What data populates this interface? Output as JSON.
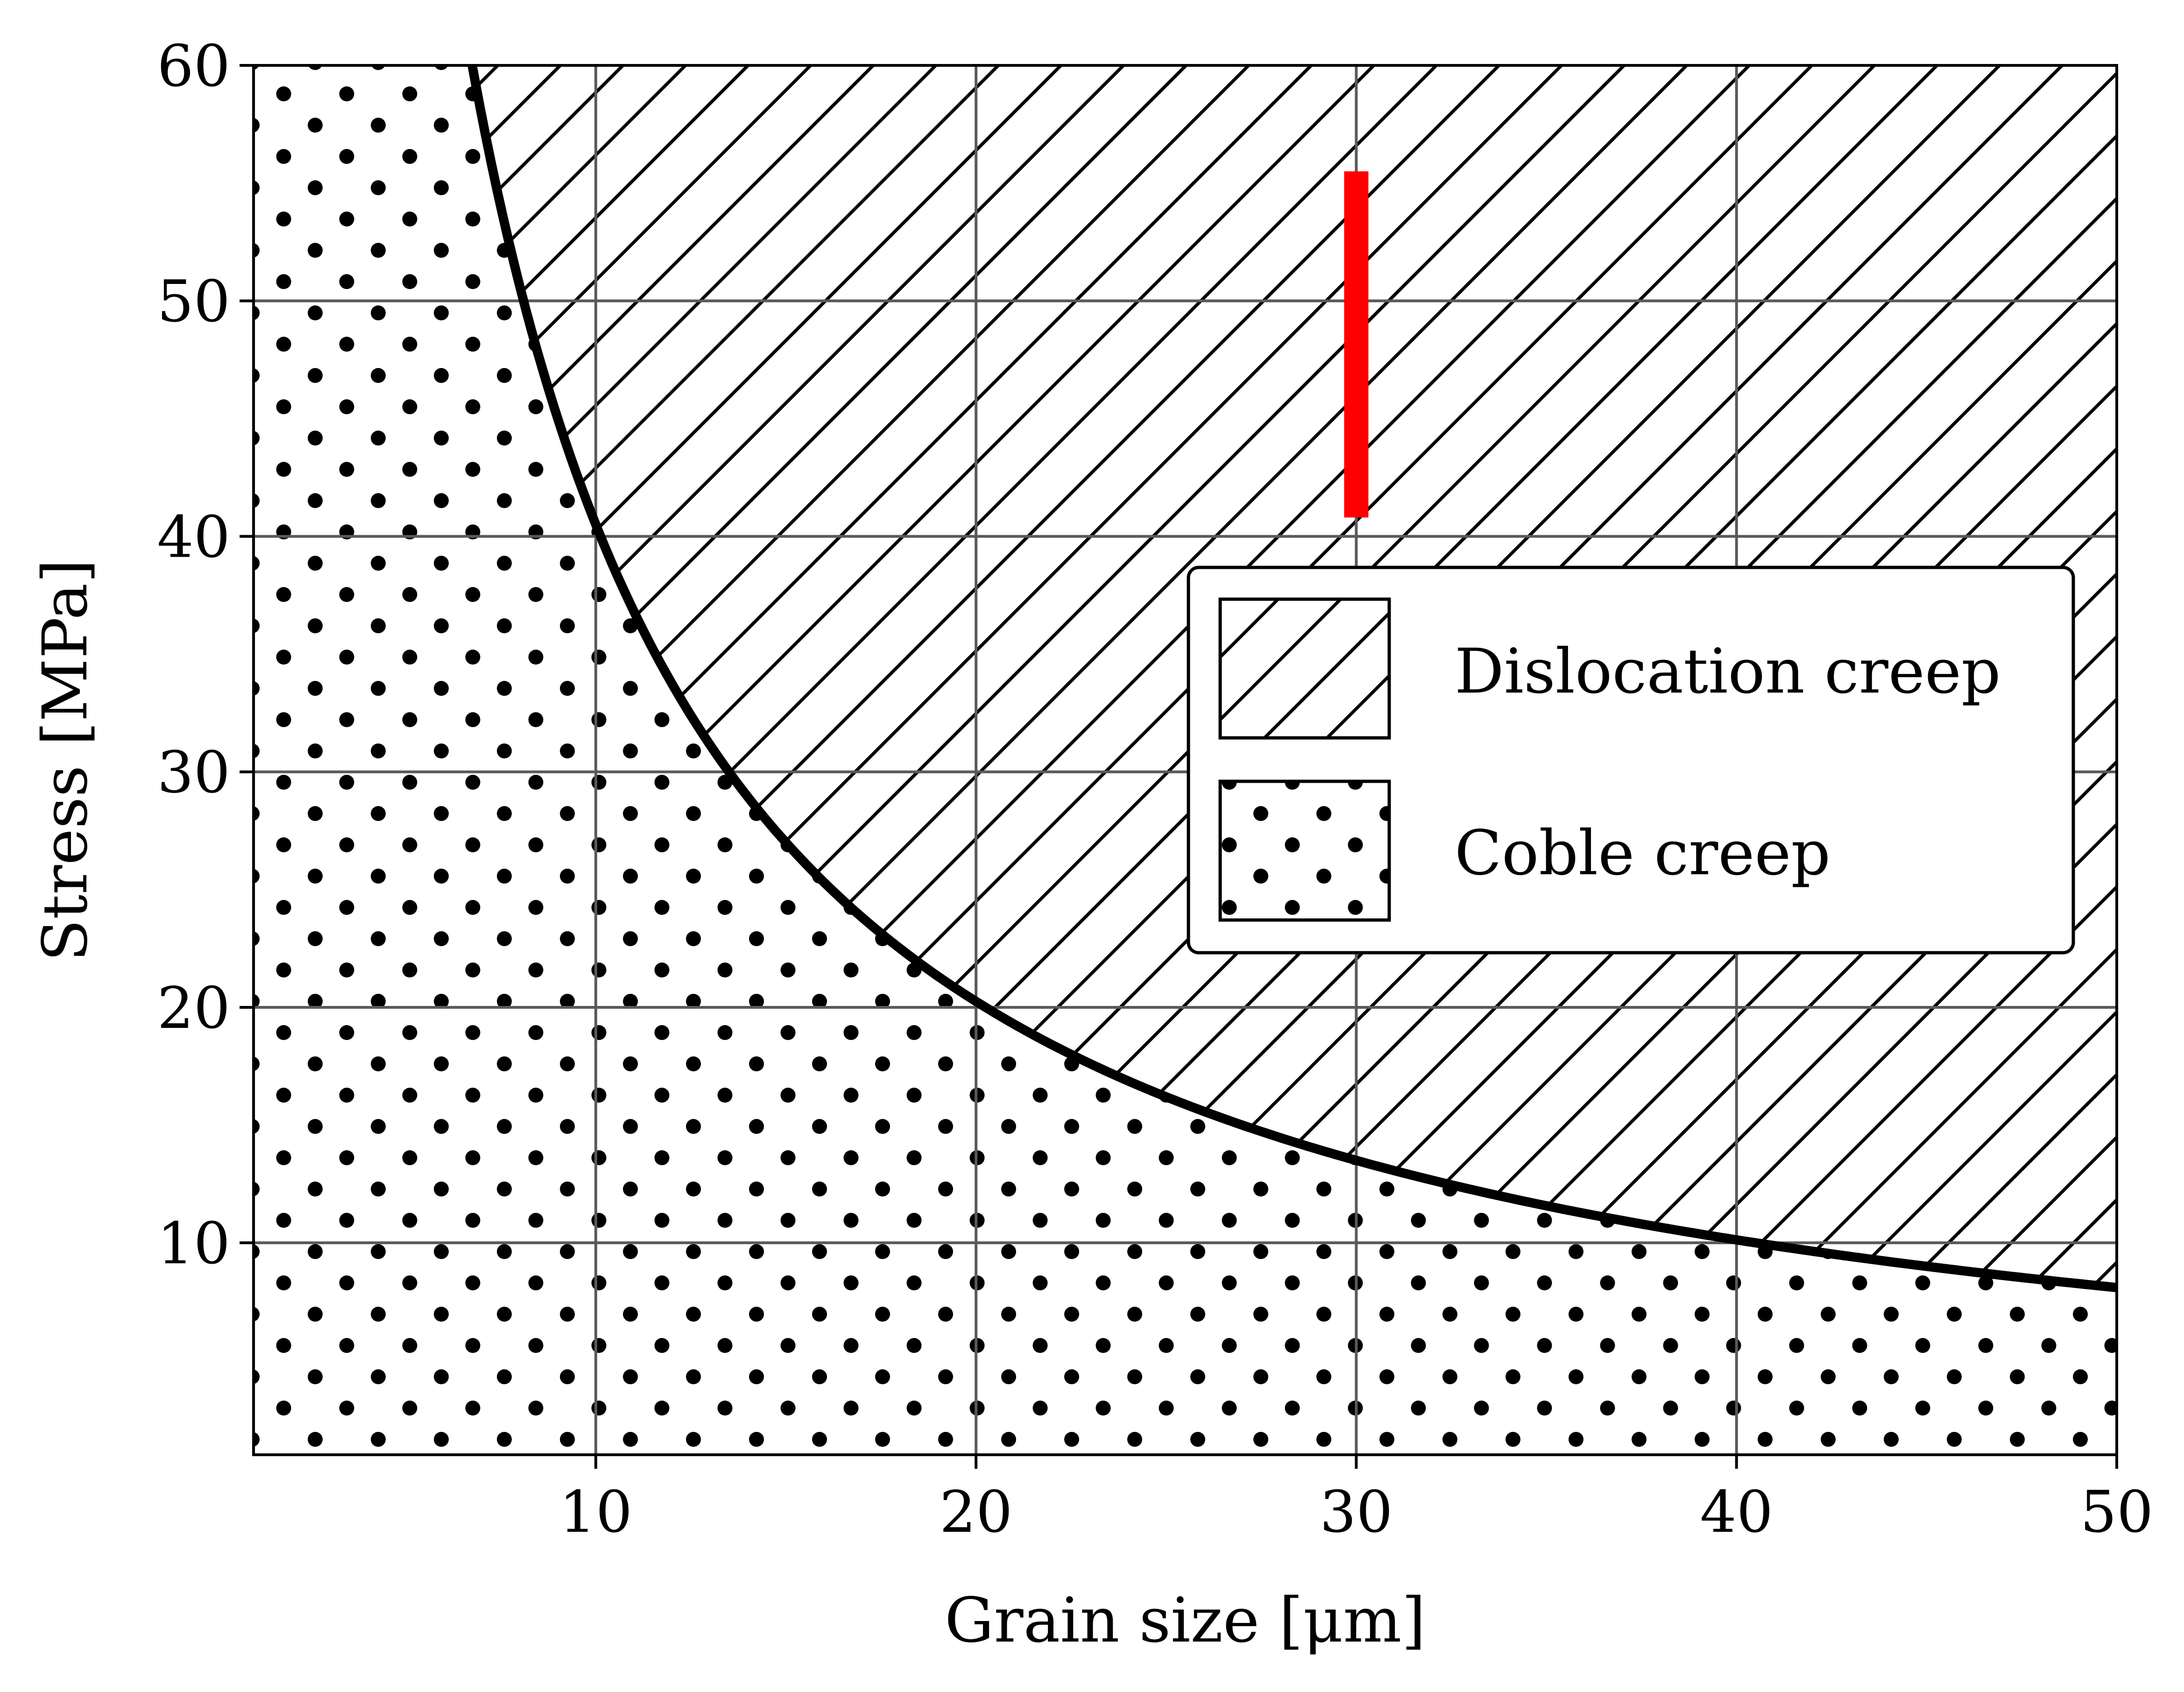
{
  "chart_data": {
    "type": "area",
    "title": "",
    "xlabel": "Grain size [μm]",
    "ylabel": "Stress [MPa]",
    "xlim": [
      1,
      50
    ],
    "ylim": [
      1,
      60
    ],
    "xticks": [
      10,
      20,
      30,
      40,
      50
    ],
    "yticks": [
      10,
      20,
      30,
      40,
      50,
      60
    ],
    "grid": true,
    "legend_position": "center-right",
    "boundary_curve": {
      "form": "stress = k / grain_size",
      "k": 405,
      "x_range": [
        5,
        50
      ],
      "color": "#000000"
    },
    "regions": [
      {
        "name": "Dislocation creep",
        "location": "above boundary curve",
        "hatch": "diagonal-lines"
      },
      {
        "name": "Coble creep",
        "location": "below boundary curve",
        "hatch": "dots"
      }
    ],
    "marker": {
      "type": "vertical-bar",
      "x": 30,
      "y_range": [
        40.8,
        55.5
      ],
      "color": "#ff0000"
    }
  }
}
